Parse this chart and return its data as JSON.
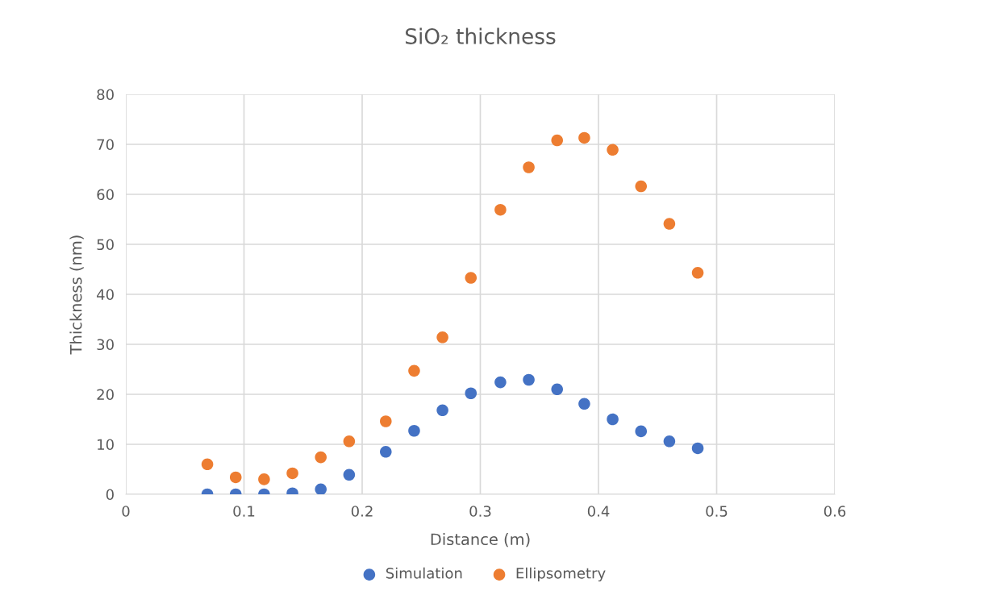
{
  "chart_data": {
    "type": "scatter",
    "title": "SiO₂ thickness",
    "xlabel": "Distance (m)",
    "ylabel": "Thickness (nm)",
    "x": [
      0.069,
      0.093,
      0.117,
      0.141,
      0.165,
      0.189,
      0.22,
      0.244,
      0.268,
      0.292,
      0.317,
      0.341,
      0.365,
      0.388,
      0.412,
      0.436,
      0.46,
      0.484
    ],
    "series": [
      {
        "name": "Simulation",
        "color": "#4472c4",
        "values": [
          0,
          0,
          0,
          0.2,
          1.0,
          3.9,
          8.5,
          12.7,
          16.8,
          20.2,
          22.4,
          22.9,
          21.0,
          18.1,
          15.0,
          12.6,
          10.6,
          9.2
        ]
      },
      {
        "name": "Ellipsometry",
        "color": "#ed7d31",
        "values": [
          6.0,
          3.4,
          3.0,
          4.2,
          7.4,
          10.6,
          14.6,
          24.7,
          31.4,
          43.3,
          56.9,
          65.4,
          70.8,
          71.3,
          68.9,
          61.6,
          54.1,
          44.3
        ]
      }
    ],
    "xlim": [
      0,
      0.6
    ],
    "xticks": [
      0,
      0.1,
      0.2,
      0.3,
      0.4,
      0.5,
      0.6
    ],
    "ylim": [
      0,
      80
    ],
    "yticks": [
      0,
      10,
      20,
      30,
      40,
      50,
      60,
      70,
      80
    ],
    "grid": true,
    "legend": "bottom",
    "marker": "circle"
  }
}
